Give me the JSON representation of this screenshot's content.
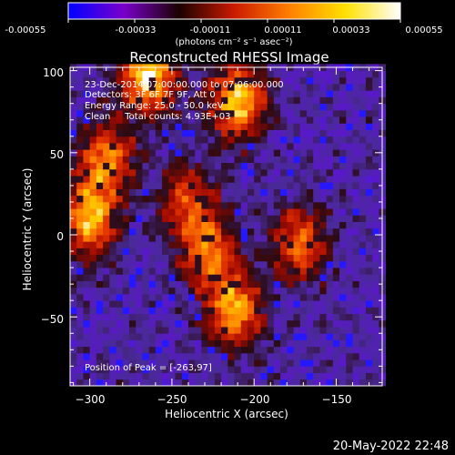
{
  "colorbar": {
    "ticks": [
      "-0.00055",
      "-0.00033",
      "-0.00011",
      "0.00011",
      "0.00033",
      "0.00055"
    ],
    "unit_label": "(photons cm⁻² s⁻¹ asec⁻²)",
    "colormap": [
      "#0000ff",
      "#7a00cc",
      "#1a0000",
      "#cc1a00",
      "#ff8000",
      "#ffe000",
      "#ffffff"
    ]
  },
  "chart_data": {
    "type": "heatmap",
    "title": "Reconstructed RHESSI Image",
    "xlabel": "Heliocentric X (arcsec)",
    "ylabel": "Heliocentric Y (arcsec)",
    "xlim": [
      -312,
      -122
    ],
    "ylim": [
      -92,
      102
    ],
    "x_ticks": [
      -300,
      -250,
      -200,
      -150
    ],
    "y_ticks": [
      -50,
      0,
      50,
      100
    ],
    "x_tick_labels": [
      "−300",
      "−250",
      "−200",
      "−150"
    ],
    "y_tick_labels": [
      "−50",
      "0",
      "50",
      "100"
    ],
    "annotations": [
      "23-Dec-2014 07:00:00.000 to 07:06:00.000",
      "Detectors: 3F 6F 7F 9F, Att 0",
      "Energy Range: 25.0 - 50.0 keV",
      "Clean     Total counts: 4.93E+03"
    ],
    "peak_label": "Position of Peak = [-263,97]",
    "peak_position": [
      -263,
      97
    ],
    "emission_sources": [
      {
        "x": -264,
        "y": 97,
        "intensity": 1.0
      },
      {
        "x": -210,
        "y": 82,
        "intensity": 0.95
      },
      {
        "x": -300,
        "y": 10,
        "intensity": 0.85
      },
      {
        "x": -290,
        "y": 45,
        "intensity": 0.75
      },
      {
        "x": -212,
        "y": -45,
        "intensity": 0.85
      },
      {
        "x": -228,
        "y": -10,
        "intensity": 0.7
      },
      {
        "x": -172,
        "y": -5,
        "intensity": 0.65
      },
      {
        "x": -240,
        "y": 20,
        "intensity": 0.55
      }
    ]
  },
  "timestamp": "20-May-2022 22:48"
}
